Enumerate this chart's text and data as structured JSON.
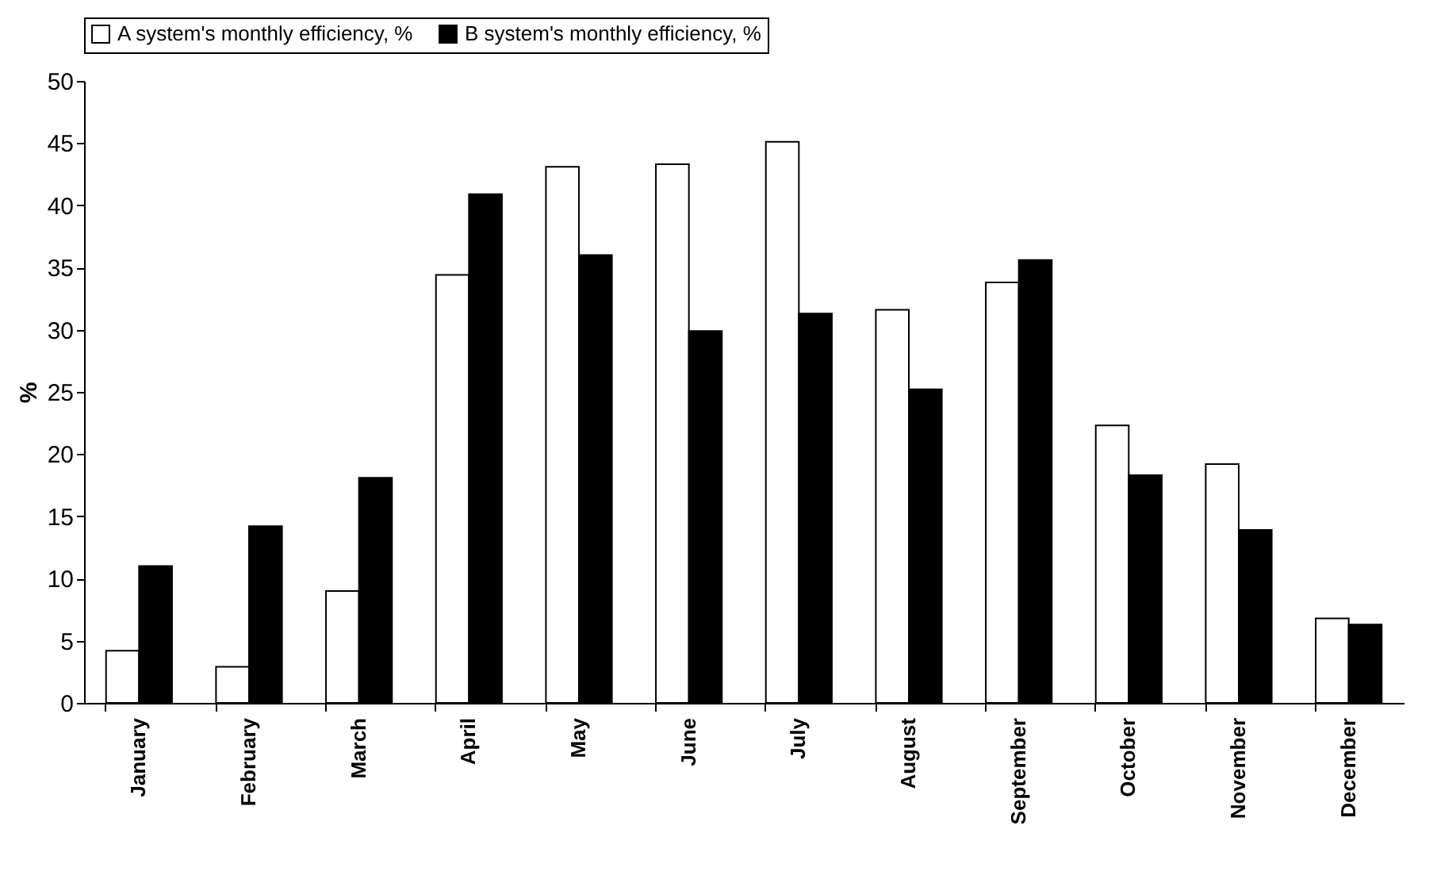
{
  "chart_data": {
    "type": "bar",
    "ylabel": "%",
    "categories": [
      "January",
      "February",
      "March",
      "April",
      "May",
      "June",
      "July",
      "August",
      "September",
      "October",
      "November",
      "December"
    ],
    "series": [
      {
        "name": "A system's monthly efficiency, %",
        "color": "#ffffff",
        "values": [
          4.2,
          2.9,
          9.0,
          34.4,
          43.1,
          43.3,
          45.1,
          31.6,
          33.8,
          22.3,
          19.2,
          6.8
        ]
      },
      {
        "name": "B system's monthly efficiency, %",
        "color": "#000000",
        "values": [
          11.0,
          14.2,
          18.1,
          40.9,
          36.0,
          29.9,
          31.3,
          25.2,
          35.6,
          18.3,
          13.9,
          6.3
        ]
      }
    ],
    "ylim": [
      0,
      50
    ],
    "yticks": [
      0,
      5,
      10,
      15,
      20,
      25,
      30,
      35,
      40,
      45,
      50
    ],
    "grid": false,
    "legend": "top"
  }
}
